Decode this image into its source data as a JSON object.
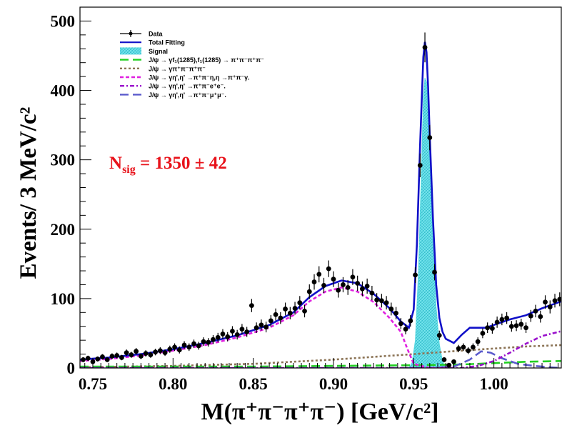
{
  "chart_data": {
    "type": "scatter",
    "xlabel": "M(π⁺π⁻π⁺π⁻) [GeV/c²]",
    "ylabel": "Events/ 3 MeV/c²",
    "xlim": [
      0.742,
      1.042
    ],
    "ylim": [
      0,
      520
    ],
    "x_ticks": [
      0.75,
      0.8,
      0.85,
      0.9,
      0.95,
      1.0
    ],
    "x_tick_labels": [
      "0.75",
      "0.80",
      "0.85",
      "0.90",
      "0.95",
      "1.00"
    ],
    "y_ticks": [
      0,
      100,
      200,
      300,
      400,
      500
    ],
    "y_tick_labels": [
      "0",
      "100",
      "200",
      "300",
      "400",
      "500"
    ],
    "grid": false,
    "legend_position": "top-left",
    "annotation": {
      "text": "N",
      "sub": "sig",
      "rest": " = 1350  ±   42",
      "color": "#e8121a"
    },
    "legend": [
      {
        "key": "data",
        "label": "Data"
      },
      {
        "key": "total",
        "label": "Total Fitting"
      },
      {
        "key": "signal",
        "label": "Signal"
      },
      {
        "key": "bkg1",
        "label": "J/ψ → γf₁(1285),f₁(1285) → π⁺π⁻π⁺π⁻"
      },
      {
        "key": "bkg2",
        "label": "J/ψ → γπ⁺π⁻π⁺π⁻"
      },
      {
        "key": "bkg3",
        "label": "J/ψ → γη',η' →π⁺π⁻η,η →π⁺π⁻γ."
      },
      {
        "key": "bkg4",
        "label": "J/ψ → γη',η' →π⁺π⁻e⁺e⁻."
      },
      {
        "key": "bkg5",
        "label": "J/ψ → γη',η' →π⁺π⁻μ⁺μ⁻."
      }
    ],
    "styles": {
      "data": {
        "color": "#000000"
      },
      "total": {
        "color": "#1010c8"
      },
      "signal": {
        "color": "#55d8e0"
      },
      "bkg1": {
        "color": "#22d022",
        "dash": "12,6"
      },
      "bkg2": {
        "color": "#8b7355",
        "dash": "3,3"
      },
      "bkg3": {
        "color": "#e020e0",
        "dash": "5,3"
      },
      "bkg4": {
        "color": "#9a10cc",
        "dash": "6,3,2,3"
      },
      "bkg5": {
        "color": "#5a5acc",
        "dash": "12,6"
      }
    },
    "series": [
      {
        "key": "data",
        "x": [
          0.744,
          0.747,
          0.75,
          0.753,
          0.756,
          0.759,
          0.762,
          0.765,
          0.768,
          0.771,
          0.774,
          0.777,
          0.78,
          0.783,
          0.786,
          0.789,
          0.792,
          0.795,
          0.798,
          0.801,
          0.804,
          0.807,
          0.81,
          0.813,
          0.816,
          0.819,
          0.822,
          0.825,
          0.828,
          0.831,
          0.834,
          0.837,
          0.84,
          0.843,
          0.846,
          0.849,
          0.852,
          0.855,
          0.858,
          0.861,
          0.864,
          0.867,
          0.87,
          0.873,
          0.876,
          0.879,
          0.882,
          0.885,
          0.888,
          0.891,
          0.894,
          0.897,
          0.9,
          0.903,
          0.906,
          0.909,
          0.912,
          0.915,
          0.918,
          0.921,
          0.924,
          0.927,
          0.93,
          0.933,
          0.936,
          0.939,
          0.942,
          0.945,
          0.948,
          0.951,
          0.954,
          0.957,
          0.96,
          0.963,
          0.966,
          0.969,
          0.972,
          0.975,
          0.978,
          0.981,
          0.984,
          0.987,
          0.99,
          0.993,
          0.996,
          0.999,
          1.002,
          1.005,
          1.008,
          1.011,
          1.014,
          1.017,
          1.02,
          1.023,
          1.026,
          1.029,
          1.032,
          1.035,
          1.038,
          1.041
        ],
        "y": [
          12,
          14,
          9,
          13,
          16,
          12,
          17,
          18,
          15,
          22,
          19,
          24,
          17,
          21,
          19,
          23,
          25,
          22,
          27,
          30,
          26,
          33,
          30,
          35,
          32,
          38,
          37,
          41,
          44,
          49,
          45,
          53,
          48,
          56,
          52,
          90,
          58,
          62,
          59,
          68,
          77,
          72,
          85,
          79,
          86,
          94,
          82,
          110,
          124,
          135,
          119,
          143,
          128,
          112,
          120,
          116,
          131,
          122,
          114,
          118,
          108,
          98,
          97,
          94,
          85,
          79,
          64,
          56,
          68,
          134,
          292,
          462,
          332,
          138,
          47,
          12,
          4,
          9,
          28,
          30,
          25,
          30,
          38,
          50,
          58,
          57,
          66,
          70,
          72,
          60,
          61,
          63,
          58,
          75,
          82,
          74,
          95,
          88,
          97,
          99
        ]
      },
      {
        "key": "total",
        "x": [
          0.742,
          0.76,
          0.78,
          0.8,
          0.82,
          0.84,
          0.86,
          0.875,
          0.885,
          0.895,
          0.905,
          0.915,
          0.925,
          0.935,
          0.942,
          0.947,
          0.95,
          0.952,
          0.954,
          0.956,
          0.957,
          0.958,
          0.959,
          0.96,
          0.962,
          0.964,
          0.966,
          0.968,
          0.97,
          0.975,
          0.98,
          0.985,
          0.99,
          0.995,
          1.0,
          1.01,
          1.02,
          1.03,
          1.042
        ],
        "y": [
          12,
          15,
          20,
          27,
          36,
          47,
          62,
          80,
          102,
          118,
          126,
          122,
          107,
          86,
          67,
          58,
          84,
          178,
          322,
          448,
          470,
          455,
          405,
          335,
          215,
          120,
          72,
          52,
          42,
          36,
          48,
          58,
          58,
          58,
          62,
          70,
          76,
          86,
          96
        ]
      },
      {
        "key": "signal",
        "x": [
          0.947,
          0.949,
          0.951,
          0.953,
          0.955,
          0.956,
          0.957,
          0.958,
          0.959,
          0.96,
          0.962,
          0.964,
          0.966,
          0.968,
          0.97
        ],
        "y": [
          0,
          8,
          40,
          140,
          300,
          390,
          418,
          412,
          370,
          300,
          180,
          88,
          34,
          10,
          0
        ]
      },
      {
        "key": "bkg1",
        "x": [
          0.742,
          0.8,
          0.85,
          0.9,
          0.95,
          0.98,
          1.0,
          1.02,
          1.042
        ],
        "y": [
          2,
          2,
          2,
          3,
          4,
          5,
          7,
          9,
          10
        ]
      },
      {
        "key": "bkg2",
        "x": [
          0.742,
          0.8,
          0.85,
          0.9,
          0.95,
          0.98,
          1.0,
          1.02,
          1.042
        ],
        "y": [
          1,
          3,
          6,
          12,
          20,
          25,
          28,
          31,
          33
        ]
      },
      {
        "key": "bkg3",
        "x": [
          0.742,
          0.76,
          0.78,
          0.8,
          0.82,
          0.84,
          0.86,
          0.875,
          0.885,
          0.895,
          0.905,
          0.915,
          0.925,
          0.935,
          0.942,
          0.946,
          0.95,
          0.96,
          0.97
        ],
        "y": [
          10,
          13,
          18,
          25,
          33,
          44,
          58,
          76,
          96,
          110,
          116,
          110,
          95,
          72,
          52,
          28,
          6,
          0,
          0
        ]
      },
      {
        "key": "bkg4",
        "x": [
          0.742,
          0.95,
          0.98,
          0.99,
          1.0,
          1.01,
          1.02,
          1.03,
          1.042
        ],
        "y": [
          0,
          0,
          0,
          3,
          10,
          22,
          35,
          46,
          53
        ]
      },
      {
        "key": "bkg5",
        "x": [
          0.742,
          0.96,
          0.975,
          0.985,
          0.992,
          0.998,
          1.005,
          1.015,
          1.025,
          1.035,
          1.042
        ],
        "y": [
          0,
          0,
          2,
          12,
          24,
          22,
          14,
          6,
          3,
          1,
          0
        ]
      }
    ]
  }
}
